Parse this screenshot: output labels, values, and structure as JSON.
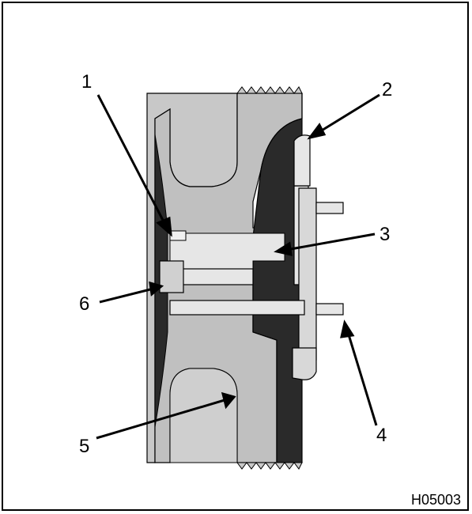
{
  "figure": {
    "id": "H05003",
    "callouts": [
      "1",
      "2",
      "3",
      "4",
      "5",
      "6"
    ]
  },
  "colors": {
    "casting": "#c8c8c8",
    "dark_body": "#2a2a2a",
    "light_part": "#e6e6e6",
    "outline": "#000000"
  }
}
